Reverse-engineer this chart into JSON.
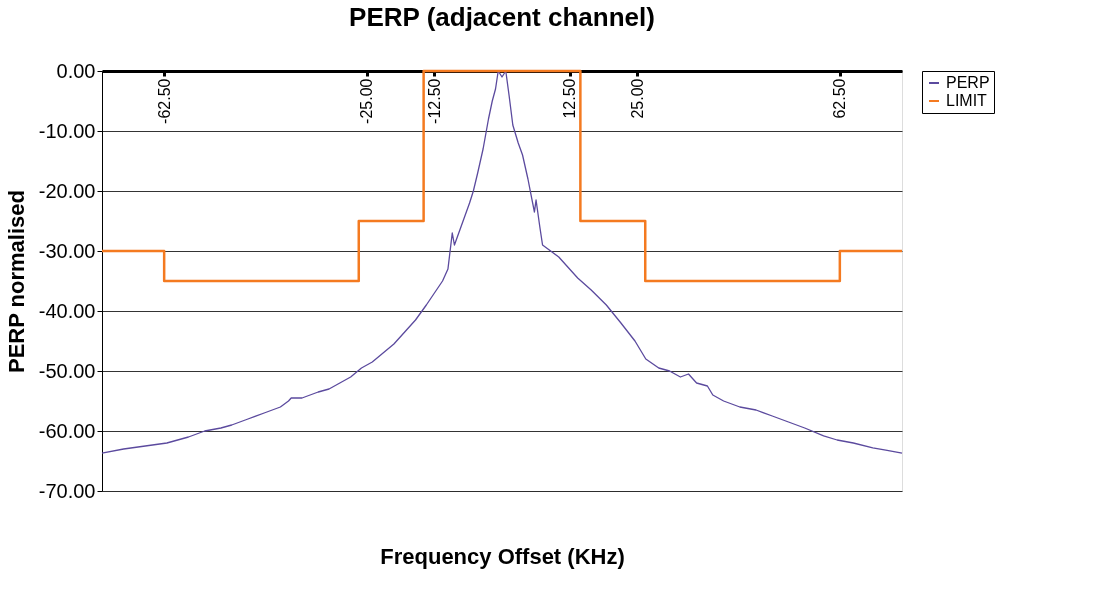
{
  "chart_data": {
    "type": "line",
    "title": "PERP (adjacent channel)",
    "xlabel": "Frequency Offset (KHz)",
    "ylabel": "PERP normalised",
    "xlim": [
      -74,
      74
    ],
    "xticks": [
      {
        "value": -62.5,
        "label": "-62.50"
      },
      {
        "value": -25,
        "label": "-25.00"
      },
      {
        "value": -12.5,
        "label": "-12.50"
      },
      {
        "value": 12.5,
        "label": "12.50"
      },
      {
        "value": 25,
        "label": "25.00"
      },
      {
        "value": 62.5,
        "label": "62.50"
      }
    ],
    "ylim": [
      -70,
      0
    ],
    "yticks": [
      {
        "value": -70,
        "label": "-70.00"
      },
      {
        "value": -60,
        "label": "-60.00"
      },
      {
        "value": -50,
        "label": "-50.00"
      },
      {
        "value": -40,
        "label": "-40.00"
      },
      {
        "value": -30,
        "label": "-30.00"
      },
      {
        "value": -20,
        "label": "-20.00"
      },
      {
        "value": -10,
        "label": "-10.00"
      },
      {
        "value": 0,
        "label": "0.00"
      }
    ],
    "grid": "y",
    "legend": "right",
    "marker": "none",
    "line_style": "solid",
    "series": [
      {
        "name": "PERP",
        "color": "#5b4a9e",
        "x": [
          -74,
          -70,
          -66,
          -62,
          -58,
          -55,
          -52,
          -50,
          -47,
          -44,
          -41,
          -39.5,
          -39,
          -37,
          -34,
          -32,
          -30,
          -28,
          -26,
          -24,
          -22,
          -20,
          -18,
          -16,
          -14,
          -12.5,
          -11,
          -10,
          -9.2,
          -8.8,
          -8,
          -7,
          -6,
          -5.3,
          -4.5,
          -3.5,
          -2.5,
          -1.8,
          -1.2,
          -0.7,
          0,
          0.7,
          1.3,
          2,
          3,
          3.8,
          4.8,
          5.6,
          6,
          6.3,
          7,
          7.5,
          9,
          10.5,
          12,
          14,
          16.5,
          19.3,
          22,
          24.6,
          26.6,
          29,
          31,
          33,
          34.5,
          36,
          38,
          39,
          41,
          44,
          47,
          50,
          53,
          56,
          59.5,
          62,
          65,
          68.6,
          71,
          74
        ],
        "values": [
          -63.7,
          -63,
          -62.5,
          -62,
          -61,
          -60,
          -59.5,
          -59,
          -58,
          -57,
          -56,
          -55,
          -54.5,
          -54.5,
          -53.5,
          -53,
          -52,
          -51,
          -49.5,
          -48.5,
          -47,
          -45.5,
          -43.5,
          -41.5,
          -39,
          -37,
          -35,
          -33,
          -27,
          -29,
          -27,
          -24.5,
          -22,
          -20,
          -17,
          -13,
          -8,
          -5,
          -3,
          0,
          -1,
          0,
          -4,
          -9,
          -12,
          -14,
          -18,
          -21.7,
          -23.5,
          -21.5,
          -26,
          -29,
          -30,
          -31,
          -32.5,
          -34.5,
          -36.5,
          -39,
          -42,
          -45,
          -48,
          -49.5,
          -50,
          -51,
          -50.5,
          -52,
          -52.5,
          -54,
          -55,
          -56,
          -56.5,
          -57.5,
          -58.5,
          -59.5,
          -60.8,
          -61.5,
          -62,
          -62.8,
          -63.2,
          -63.7
        ]
      },
      {
        "name": "LIMIT",
        "color": "#f47a20",
        "type": "step",
        "x": [
          -74,
          -62.5,
          -26.5,
          -14.5,
          14.5,
          26.5,
          62.5,
          74
        ],
        "values": [
          -30,
          -35,
          -25,
          0,
          -25,
          -35,
          -30,
          -30
        ]
      }
    ]
  }
}
